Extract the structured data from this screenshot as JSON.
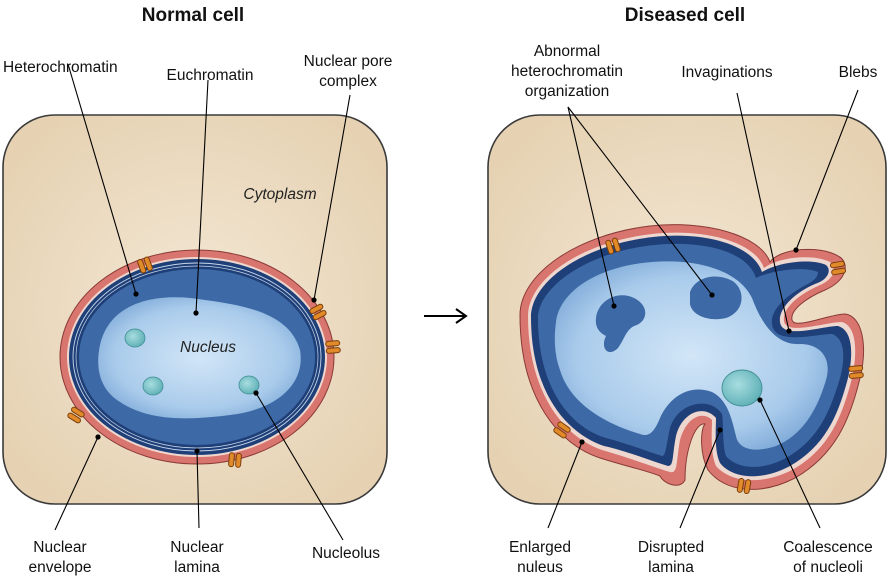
{
  "titles": {
    "normal": "Normal cell",
    "diseased": "Diseased cell"
  },
  "normal": {
    "cytoplasm": "Cytoplasm",
    "nucleus": "Nucleus",
    "labels": {
      "heterochromatin": "Heterochromatin",
      "euchromatin": "Euchromatin",
      "pore_l1": "Nuclear pore",
      "pore_l2": "complex",
      "envelope_l1": "Nuclear",
      "envelope_l2": "envelope",
      "lamina_l1": "Nuclear",
      "lamina_l2": "lamina",
      "nucleolus": "Nucleolus"
    }
  },
  "diseased": {
    "labels": {
      "abn_l1": "Abnormal",
      "abn_l2": "heterochromatin",
      "abn_l3": "organization",
      "invaginations": "Invaginations",
      "blebs": "Blebs",
      "enlarged_l1": "Enlarged",
      "enlarged_l2": "nuleus",
      "disrupted_l1": "Disrupted",
      "disrupted_l2": "lamina",
      "coalescence_l1": "Coalescence",
      "coalescence_l2": "of nucleoli"
    }
  },
  "arrow_symbol": "→",
  "colors": {
    "cytoplasm": "#ead9bf",
    "cell_border": "#3a3a3a",
    "envelope": "#d9756f",
    "lamina": "#1f3f78",
    "nucleus_light": "#b7d4ef",
    "heterochromatin": "#3b6aa8",
    "nucleolus": "#7cc3c6",
    "pore": "#e08a2a"
  }
}
